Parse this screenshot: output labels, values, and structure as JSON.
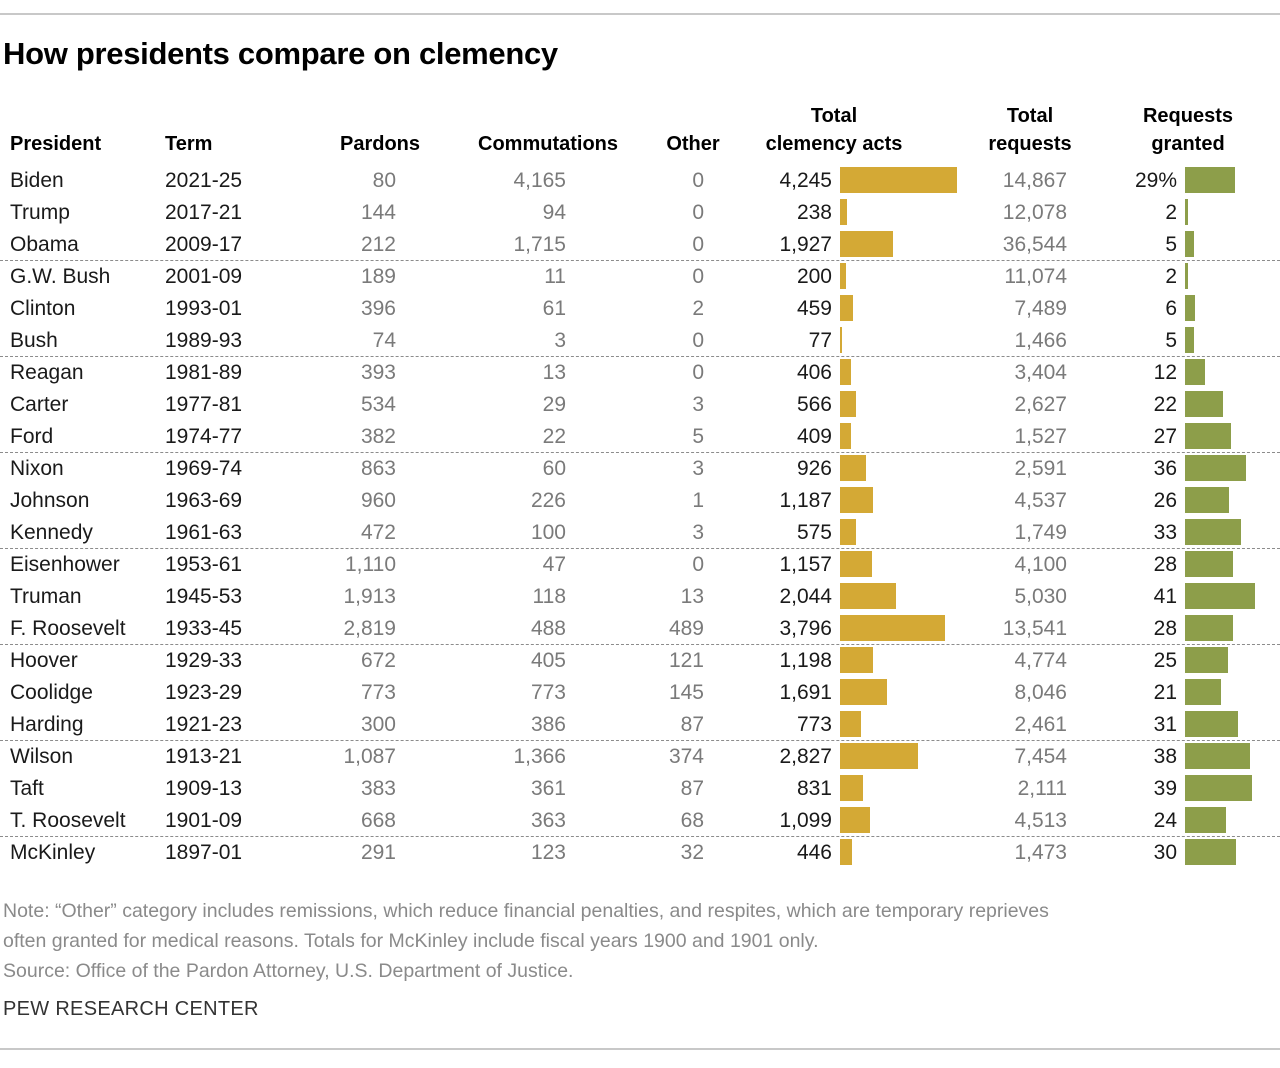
{
  "title": "How presidents compare on clemency",
  "headers": {
    "president": "President",
    "term": "Term",
    "pardons": "Pardons",
    "commutations": "Commutations",
    "other": "Other",
    "total_acts_line1": "Total",
    "total_acts_line2": "clemency acts",
    "total_requests_line1": "Total",
    "total_requests_line2": "requests",
    "granted_line1": "Requests",
    "granted_line2": "granted"
  },
  "colors": {
    "acts_bar": "#d4a935",
    "granted_bar": "#8d9e4a"
  },
  "chart_data": {
    "type": "table",
    "columns": [
      "President",
      "Term",
      "Pardons",
      "Commutations",
      "Other",
      "Total clemency acts",
      "Total requests",
      "Requests granted"
    ],
    "bar_columns": [
      "Total clemency acts",
      "Requests granted"
    ],
    "rows": [
      {
        "president": "Biden",
        "term": "2021-25",
        "pardons": "80",
        "commutations": "4,165",
        "other": "0",
        "total_acts": 4245,
        "total_acts_label": "4,245",
        "total_requests": "14,867",
        "granted": 29,
        "granted_label": "29%"
      },
      {
        "president": "Trump",
        "term": "2017-21",
        "pardons": "144",
        "commutations": "94",
        "other": "0",
        "total_acts": 238,
        "total_acts_label": "238",
        "total_requests": "12,078",
        "granted": 2,
        "granted_label": "2"
      },
      {
        "president": "Obama",
        "term": "2009-17",
        "pardons": "212",
        "commutations": "1,715",
        "other": "0",
        "total_acts": 1927,
        "total_acts_label": "1,927",
        "total_requests": "36,544",
        "granted": 5,
        "granted_label": "5"
      },
      {
        "president": "G.W. Bush",
        "term": "2001-09",
        "pardons": "189",
        "commutations": "11",
        "other": "0",
        "total_acts": 200,
        "total_acts_label": "200",
        "total_requests": "11,074",
        "granted": 2,
        "granted_label": "2"
      },
      {
        "president": "Clinton",
        "term": "1993-01",
        "pardons": "396",
        "commutations": "61",
        "other": "2",
        "total_acts": 459,
        "total_acts_label": "459",
        "total_requests": "7,489",
        "granted": 6,
        "granted_label": "6"
      },
      {
        "president": "Bush",
        "term": "1989-93",
        "pardons": "74",
        "commutations": "3",
        "other": "0",
        "total_acts": 77,
        "total_acts_label": "77",
        "total_requests": "1,466",
        "granted": 5,
        "granted_label": "5"
      },
      {
        "president": "Reagan",
        "term": "1981-89",
        "pardons": "393",
        "commutations": "13",
        "other": "0",
        "total_acts": 406,
        "total_acts_label": "406",
        "total_requests": "3,404",
        "granted": 12,
        "granted_label": "12"
      },
      {
        "president": "Carter",
        "term": "1977-81",
        "pardons": "534",
        "commutations": "29",
        "other": "3",
        "total_acts": 566,
        "total_acts_label": "566",
        "total_requests": "2,627",
        "granted": 22,
        "granted_label": "22"
      },
      {
        "president": "Ford",
        "term": "1974-77",
        "pardons": "382",
        "commutations": "22",
        "other": "5",
        "total_acts": 409,
        "total_acts_label": "409",
        "total_requests": "1,527",
        "granted": 27,
        "granted_label": "27"
      },
      {
        "president": "Nixon",
        "term": "1969-74",
        "pardons": "863",
        "commutations": "60",
        "other": "3",
        "total_acts": 926,
        "total_acts_label": "926",
        "total_requests": "2,591",
        "granted": 36,
        "granted_label": "36"
      },
      {
        "president": "Johnson",
        "term": "1963-69",
        "pardons": "960",
        "commutations": "226",
        "other": "1",
        "total_acts": 1187,
        "total_acts_label": "1,187",
        "total_requests": "4,537",
        "granted": 26,
        "granted_label": "26"
      },
      {
        "president": "Kennedy",
        "term": "1961-63",
        "pardons": "472",
        "commutations": "100",
        "other": "3",
        "total_acts": 575,
        "total_acts_label": "575",
        "total_requests": "1,749",
        "granted": 33,
        "granted_label": "33"
      },
      {
        "president": "Eisenhower",
        "term": "1953-61",
        "pardons": "1,110",
        "commutations": "47",
        "other": "0",
        "total_acts": 1157,
        "total_acts_label": "1,157",
        "total_requests": "4,100",
        "granted": 28,
        "granted_label": "28"
      },
      {
        "president": "Truman",
        "term": "1945-53",
        "pardons": "1,913",
        "commutations": "118",
        "other": "13",
        "total_acts": 2044,
        "total_acts_label": "2,044",
        "total_requests": "5,030",
        "granted": 41,
        "granted_label": "41"
      },
      {
        "president": "F. Roosevelt",
        "term": "1933-45",
        "pardons": "2,819",
        "commutations": "488",
        "other": "489",
        "total_acts": 3796,
        "total_acts_label": "3,796",
        "total_requests": "13,541",
        "granted": 28,
        "granted_label": "28"
      },
      {
        "president": "Hoover",
        "term": "1929-33",
        "pardons": "672",
        "commutations": "405",
        "other": "121",
        "total_acts": 1198,
        "total_acts_label": "1,198",
        "total_requests": "4,774",
        "granted": 25,
        "granted_label": "25"
      },
      {
        "president": "Coolidge",
        "term": "1923-29",
        "pardons": "773",
        "commutations": "773",
        "other": "145",
        "total_acts": 1691,
        "total_acts_label": "1,691",
        "total_requests": "8,046",
        "granted": 21,
        "granted_label": "21"
      },
      {
        "president": "Harding",
        "term": "1921-23",
        "pardons": "300",
        "commutations": "386",
        "other": "87",
        "total_acts": 773,
        "total_acts_label": "773",
        "total_requests": "2,461",
        "granted": 31,
        "granted_label": "31"
      },
      {
        "president": "Wilson",
        "term": "1913-21",
        "pardons": "1,087",
        "commutations": "1,366",
        "other": "374",
        "total_acts": 2827,
        "total_acts_label": "2,827",
        "total_requests": "7,454",
        "granted": 38,
        "granted_label": "38"
      },
      {
        "president": "Taft",
        "term": "1909-13",
        "pardons": "383",
        "commutations": "361",
        "other": "87",
        "total_acts": 831,
        "total_acts_label": "831",
        "total_requests": "2,111",
        "granted": 39,
        "granted_label": "39"
      },
      {
        "president": "T. Roosevelt",
        "term": "1901-09",
        "pardons": "668",
        "commutations": "363",
        "other": "68",
        "total_acts": 1099,
        "total_acts_label": "1,099",
        "total_requests": "4,513",
        "granted": 24,
        "granted_label": "24"
      },
      {
        "president": "McKinley",
        "term": "1897-01",
        "pardons": "291",
        "commutations": "123",
        "other": "32",
        "total_acts": 446,
        "total_acts_label": "446",
        "total_requests": "1,473",
        "granted": 30,
        "granted_label": "30"
      }
    ]
  },
  "footer": {
    "note_line1": "Note: “Other” category includes remissions, which reduce financial penalties, and respites, which are temporary reprieves",
    "note_line2": "often granted for medical reasons. Totals for McKinley include fiscal years 1900 and 1901 only.",
    "source": "Source: Office of the Pardon Attorney, U.S. Department of Justice."
  },
  "branding": "PEW RESEARCH CENTER"
}
